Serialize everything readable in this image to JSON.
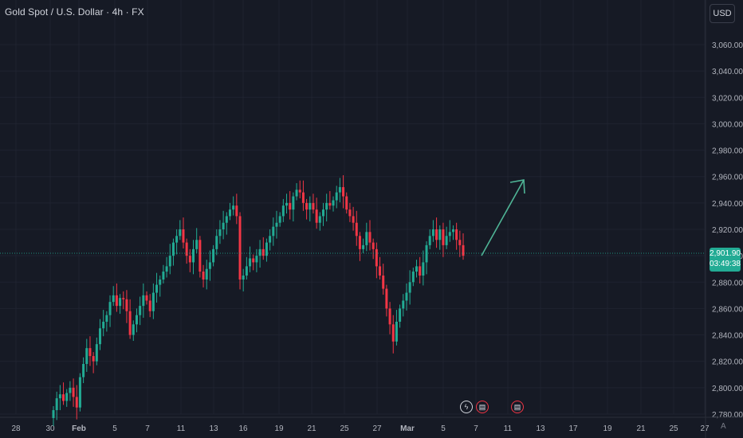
{
  "header": {
    "title": "Gold Spot / U.S. Dollar · 4h · FX",
    "currency": "USD"
  },
  "price_tag": {
    "price": "2,901.90",
    "countdown": "03:49:38",
    "color": "#22ab94"
  },
  "colors": {
    "background": "#161a25",
    "grid": "#1f2330",
    "up": "#22ab94",
    "down": "#f23645",
    "arrow": "#4fb596"
  },
  "events": {
    "flash_icon": "flash-icon",
    "flag_icon": "us-flag-icon"
  },
  "auto_label": "A",
  "chart_data": {
    "type": "candlestick",
    "title": "Gold Spot / U.S. Dollar · 4h · FX",
    "ylim": [
      2773,
      3075
    ],
    "y_ticks": [
      "2,780.00",
      "2,800.00",
      "2,820.00",
      "2,840.00",
      "2,860.00",
      "2,880.00",
      "2,900.00",
      "2,920.00",
      "2,940.00",
      "2,960.00",
      "2,980.00",
      "3,000.00",
      "3,020.00",
      "3,040.00",
      "3,060.00"
    ],
    "x_ticks": [
      "28",
      "30",
      "Feb",
      "5",
      "7",
      "11",
      "13",
      "16",
      "19",
      "21",
      "25",
      "27",
      "Mar",
      "5",
      "7",
      "11",
      "13",
      "17",
      "19",
      "21",
      "25",
      "27"
    ],
    "last_price": 2901.9,
    "closes": [
      2783,
      2792,
      2795,
      2790,
      2796,
      2800,
      2793,
      2785,
      2808,
      2818,
      2830,
      2824,
      2820,
      2833,
      2845,
      2850,
      2855,
      2865,
      2870,
      2862,
      2868,
      2867,
      2858,
      2840,
      2848,
      2855,
      2862,
      2870,
      2866,
      2858,
      2872,
      2878,
      2882,
      2888,
      2892,
      2900,
      2910,
      2915,
      2920,
      2910,
      2900,
      2895,
      2905,
      2912,
      2888,
      2882,
      2890,
      2895,
      2905,
      2915,
      2920,
      2925,
      2930,
      2935,
      2938,
      2930,
      2882,
      2885,
      2892,
      2898,
      2895,
      2900,
      2905,
      2900,
      2910,
      2915,
      2922,
      2925,
      2930,
      2938,
      2940,
      2935,
      2945,
      2950,
      2948,
      2940,
      2935,
      2940,
      2935,
      2925,
      2930,
      2935,
      2940,
      2938,
      2942,
      2948,
      2952,
      2945,
      2935,
      2930,
      2925,
      2915,
      2905,
      2908,
      2918,
      2910,
      2905,
      2892,
      2885,
      2875,
      2860,
      2848,
      2835,
      2850,
      2860,
      2866,
      2872,
      2880,
      2888,
      2892,
      2885,
      2895,
      2908,
      2915,
      2920,
      2912,
      2920,
      2908,
      2915,
      2918,
      2920,
      2912,
      2908,
      2900
    ],
    "trend_arrow": {
      "from": [
        2901,
        "Mar 7"
      ],
      "to": [
        2958,
        "Mar 12"
      ]
    }
  }
}
